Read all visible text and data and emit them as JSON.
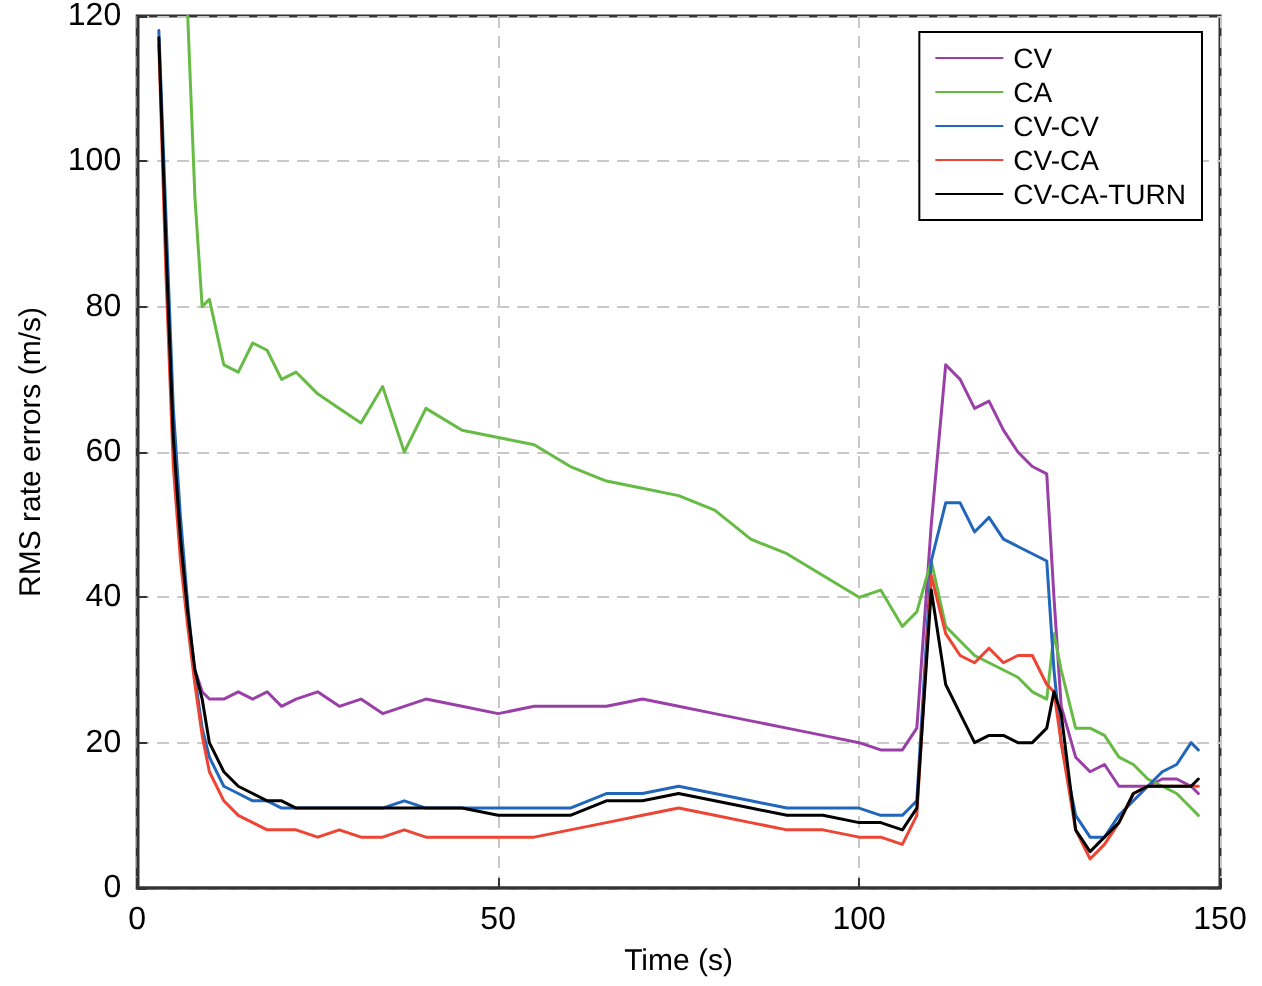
{
  "chart_data": {
    "type": "line",
    "xlabel": "Time (s)",
    "ylabel": "RMS rate errors (m/s)",
    "x": [
      3,
      4,
      5,
      6,
      7,
      8,
      9,
      10,
      12,
      14,
      16,
      18,
      20,
      22,
      25,
      28,
      31,
      34,
      37,
      40,
      45,
      50,
      55,
      60,
      65,
      70,
      75,
      80,
      85,
      90,
      95,
      100,
      103,
      106,
      108,
      110,
      112,
      114,
      116,
      118,
      120,
      122,
      124,
      126,
      127,
      128,
      130,
      132,
      134,
      136,
      138,
      140,
      142,
      144,
      146,
      147
    ],
    "series": [
      {
        "name": "CV",
        "color": "#9b3fa8",
        "values": [
          null,
          null,
          null,
          null,
          null,
          30,
          27,
          26,
          26,
          27,
          26,
          27,
          25,
          26,
          27,
          25,
          26,
          24,
          25,
          26,
          25,
          24,
          25,
          25,
          25,
          26,
          25,
          24,
          23,
          22,
          21,
          20,
          19,
          19,
          22,
          50,
          72,
          70,
          66,
          67,
          63,
          60,
          58,
          57,
          40,
          25,
          18,
          16,
          17,
          14,
          14,
          14,
          15,
          15,
          14,
          13
        ]
      },
      {
        "name": "CA",
        "color": "#66bb44",
        "values": [
          null,
          null,
          null,
          null,
          120,
          95,
          80,
          81,
          72,
          71,
          75,
          74,
          70,
          71,
          68,
          66,
          64,
          69,
          60,
          66,
          63,
          62,
          61,
          58,
          56,
          55,
          54,
          52,
          48,
          46,
          43,
          40,
          41,
          36,
          38,
          45,
          36,
          34,
          32,
          31,
          30,
          29,
          27,
          26,
          35,
          30,
          22,
          22,
          21,
          18,
          17,
          15,
          14,
          13,
          11,
          10
        ]
      },
      {
        "name": "CV-CV",
        "color": "#2266bb",
        "values": [
          118,
          92,
          66,
          51,
          39,
          29,
          22,
          18,
          14,
          13,
          12,
          12,
          11,
          11,
          11,
          11,
          11,
          11,
          12,
          11,
          11,
          11,
          11,
          11,
          13,
          13,
          14,
          13,
          12,
          11,
          11,
          11,
          10,
          10,
          12,
          45,
          53,
          53,
          49,
          51,
          48,
          47,
          46,
          45,
          30,
          20,
          10,
          7,
          7,
          10,
          12,
          14,
          16,
          17,
          20,
          19
        ]
      },
      {
        "name": "CV-CA",
        "color": "#ee4433",
        "values": [
          116,
          84,
          58,
          45,
          36,
          28,
          21,
          16,
          12,
          10,
          9,
          8,
          8,
          8,
          7,
          8,
          7,
          7,
          8,
          7,
          7,
          7,
          7,
          8,
          9,
          10,
          11,
          10,
          9,
          8,
          8,
          7,
          7,
          6,
          10,
          43,
          35,
          32,
          31,
          33,
          31,
          32,
          32,
          28,
          27,
          20,
          8,
          4,
          6,
          9,
          13,
          14,
          14,
          14,
          14,
          14
        ]
      },
      {
        "name": "CV-CA-TURN",
        "color": "#000000",
        "values": [
          117,
          88,
          62,
          48,
          38,
          30,
          26,
          20,
          16,
          14,
          13,
          12,
          12,
          11,
          11,
          11,
          11,
          11,
          11,
          11,
          11,
          10,
          10,
          10,
          12,
          12,
          13,
          12,
          11,
          10,
          10,
          9,
          9,
          8,
          11,
          41,
          28,
          24,
          20,
          21,
          21,
          20,
          20,
          22,
          27,
          24,
          8,
          5,
          7,
          9,
          13,
          14,
          14,
          14,
          14,
          15
        ]
      }
    ],
    "xlim": [
      0,
      150
    ],
    "xticks": [
      0,
      50,
      100,
      150
    ],
    "ylim": [
      0,
      120
    ],
    "yticks": [
      0,
      20,
      40,
      60,
      80,
      100,
      120
    ],
    "grid": true,
    "legend": "top right",
    "marker": "none",
    "line_style": "solid"
  }
}
